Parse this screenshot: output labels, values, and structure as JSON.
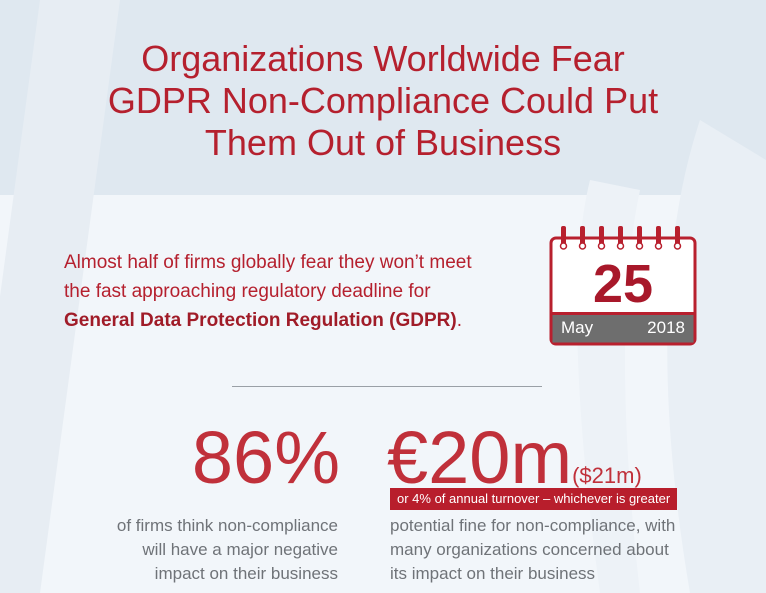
{
  "title": {
    "line1": "Organizations Worldwide Fear",
    "line2": "GDPR Non-Compliance Could Put",
    "line3": "Them Out of Business"
  },
  "intro": {
    "line1": "Almost half of firms globally fear they won’t meet",
    "line2": "the fast approaching regulatory deadline for",
    "regulation_name": "General Data Protection Regulation (GDPR)",
    "trailing": "."
  },
  "calendar": {
    "day": "25",
    "month": "May",
    "year": "2018"
  },
  "stats": {
    "left": {
      "value": "86%",
      "description_lines": [
        "of firms think non-compliance",
        "will have a major negative",
        "impact on their business"
      ]
    },
    "right": {
      "value": "€20m",
      "value_alt": "($21m)",
      "note": "or 4% of annual turnover – whichever is greater",
      "description_lines": [
        "potential fine for non-compliance, with",
        "many organizations concerned about",
        "its impact on their business"
      ]
    }
  },
  "colors": {
    "accent_red": "#b5202e",
    "calendar_bar": "#6e6e6e",
    "body_gray": "#6f7378",
    "header_band": "#dce6ef"
  }
}
